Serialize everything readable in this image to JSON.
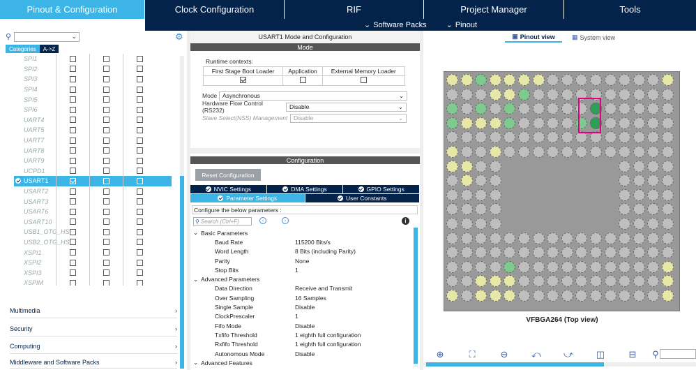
{
  "topnav": {
    "tabs": [
      {
        "label": "Pinout & Configuration",
        "active": true
      },
      {
        "label": "Clock Configuration"
      },
      {
        "label": "RIF"
      },
      {
        "label": "Project Manager"
      },
      {
        "label": "Tools"
      }
    ]
  },
  "subnav": {
    "software_packs": "Software Packs",
    "pinout": "Pinout"
  },
  "left": {
    "tab_categories": "Categories",
    "tab_az": "A->Z",
    "rows": [
      {
        "label": "SPI1",
        "c": [
          false,
          false,
          false
        ]
      },
      {
        "label": "SPI2",
        "c": [
          false,
          false,
          false
        ]
      },
      {
        "label": "SPI3",
        "c": [
          false,
          false,
          false
        ]
      },
      {
        "label": "SPI4",
        "c": [
          false,
          false,
          false
        ]
      },
      {
        "label": "SPI5",
        "c": [
          false,
          false,
          false
        ]
      },
      {
        "label": "SPI6",
        "c": [
          false,
          false,
          false
        ]
      },
      {
        "label": "UART4",
        "c": [
          false,
          false,
          false
        ]
      },
      {
        "label": "UART5",
        "c": [
          false,
          false,
          false
        ]
      },
      {
        "label": "UART7",
        "c": [
          false,
          false,
          false
        ]
      },
      {
        "label": "UART8",
        "c": [
          false,
          false,
          false
        ]
      },
      {
        "label": "UART9",
        "c": [
          false,
          false,
          false
        ]
      },
      {
        "label": "UCPD1",
        "c": [
          false,
          false,
          false
        ]
      },
      {
        "label": "USART1",
        "c": [
          true,
          false,
          false
        ],
        "selected": true
      },
      {
        "label": "USART2",
        "c": [
          false,
          false,
          false
        ]
      },
      {
        "label": "USART3",
        "c": [
          false,
          false,
          false
        ]
      },
      {
        "label": "USART6",
        "c": [
          false,
          false,
          false
        ]
      },
      {
        "label": "USART10",
        "c": [
          false,
          false,
          false
        ]
      },
      {
        "label": "USB1_OTG_HS",
        "c": [
          false,
          false,
          false
        ]
      },
      {
        "label": "USB2_OTG_HS",
        "c": [
          false,
          false,
          false
        ]
      },
      {
        "label": "XSPI1",
        "c": [
          false,
          false,
          false
        ]
      },
      {
        "label": "XSPI2",
        "c": [
          false,
          false,
          false
        ]
      },
      {
        "label": "XSPI3",
        "c": [
          false,
          false,
          false
        ]
      },
      {
        "label": "XSPIM",
        "c": [
          false,
          false,
          false
        ]
      }
    ],
    "categories": [
      "Multimedia",
      "Security",
      "Computing",
      "Middleware and Software Packs"
    ]
  },
  "middle": {
    "title": "USART1 Mode and Configuration",
    "mode_header": "Mode",
    "runtime_label": "Runtime contexts:",
    "contexts": [
      "First Stage Boot Loader",
      "Application",
      "External Memory Loader"
    ],
    "mode_label": "Mode",
    "mode_value": "Asynchronous",
    "hwfc_label": "Hardware Flow Control (RS232)",
    "hwfc_value": "Disable",
    "nss_label": "Slave Select(NSS) Management",
    "nss_value": "Disable",
    "config_header": "Configuration",
    "reset_button": "Reset Configuration",
    "tabs_row1": [
      "NVIC Settings",
      "DMA Settings",
      "GPIO Settings"
    ],
    "tabs_row2": [
      "Parameter Settings",
      "User Constants"
    ],
    "configure_text": "Configure the below parameters :",
    "search_placeholder": "Search (Ctrl+F)",
    "groups": [
      {
        "name": "Basic Parameters",
        "params": [
          [
            "Baud Rate",
            "115200 Bits/s"
          ],
          [
            "Word Length",
            "8 Bits (including Parity)"
          ],
          [
            "Parity",
            "None"
          ],
          [
            "Stop Bits",
            "1"
          ]
        ]
      },
      {
        "name": "Advanced Parameters",
        "params": [
          [
            "Data Direction",
            "Receive and Transmit"
          ],
          [
            "Over Sampling",
            "16 Samples"
          ],
          [
            "Single Sample",
            "Disable"
          ],
          [
            "ClockPrescaler",
            "1"
          ],
          [
            "Fifo Mode",
            "Disable"
          ],
          [
            "Txfifo Threshold",
            "1 eighth full configuration"
          ],
          [
            "Rxfifo Threshold",
            "1 eighth full configuration"
          ],
          [
            "Autonomous Mode",
            "Disable"
          ]
        ]
      },
      {
        "name": "Advanced Features",
        "params": []
      }
    ]
  },
  "right": {
    "pinout_view": "Pinout view",
    "system_view": "System view",
    "chip_label": "VFBGA264 (Top view)"
  },
  "colors": {
    "navy": "#03234b",
    "accent": "#3cb4e6",
    "highlight": "#e4007c"
  }
}
